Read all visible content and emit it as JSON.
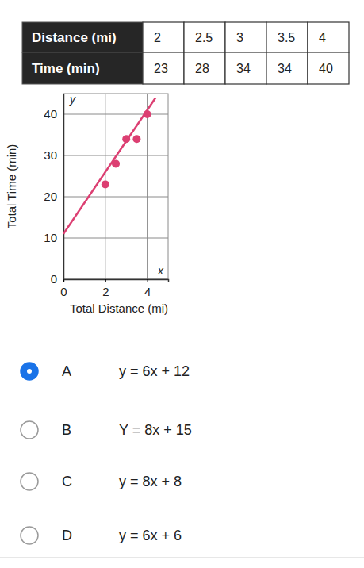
{
  "table": {
    "rows": [
      {
        "label": "Distance (mi)",
        "values": [
          2,
          2.5,
          3,
          3.5,
          4
        ]
      },
      {
        "label": "Time (min)",
        "values": [
          23,
          28,
          34,
          34,
          40
        ]
      }
    ]
  },
  "chart_data": {
    "type": "scatter",
    "x_label": "Total Distance (mi)",
    "y_label": "Total Time (min)",
    "annotations": [
      "x",
      "y"
    ],
    "xlim": [
      0,
      5
    ],
    "xticks": [
      0,
      2,
      4
    ],
    "ylim": [
      0,
      45
    ],
    "yticks": [
      0,
      10,
      20,
      30,
      40
    ],
    "grid": true,
    "series": [
      {
        "type": "line",
        "color": "#dc3f72",
        "x": [
          0,
          4.4
        ],
        "values": [
          11,
          44
        ]
      },
      {
        "type": "scatter",
        "color": "#dc3f72",
        "marker": "circle",
        "x": [
          2,
          2.5,
          3,
          3.5,
          4
        ],
        "values": [
          23,
          28,
          34,
          34,
          40
        ]
      }
    ]
  },
  "choices": {
    "selected": "A",
    "options": [
      {
        "letter": "A",
        "text": "y = 6x + 12"
      },
      {
        "letter": "B",
        "text": "Y = 8x + 15"
      },
      {
        "letter": "C",
        "text": "y = 8x + 8"
      },
      {
        "letter": "D",
        "text": "y = 6x + 6"
      }
    ]
  }
}
